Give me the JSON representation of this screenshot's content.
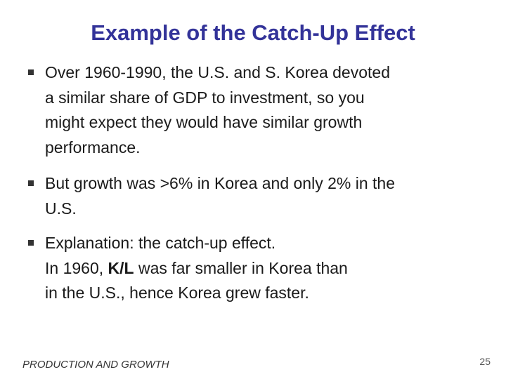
{
  "slide": {
    "title": "Example of the Catch-Up Effect",
    "bullets": [
      {
        "lines": [
          "Over 1960-1990, the U.S. and S. Korea devoted",
          "a similar share of GDP to investment, so you",
          "might expect they would have similar growth",
          "performance."
        ]
      },
      {
        "lines": [
          "But growth was >6% in Korea and only 2% in the",
          "U.S."
        ]
      },
      {
        "line1": "Explanation:  the catch-up effect.",
        "line2_pre": "In 1960, ",
        "line2_bold": "K/L",
        "line2_post": " was far smaller in Korea than",
        "line3": "in the U.S., hence Korea grew faster."
      }
    ],
    "footer": "PRODUCTION AND GROWTH",
    "page_number": "25"
  }
}
